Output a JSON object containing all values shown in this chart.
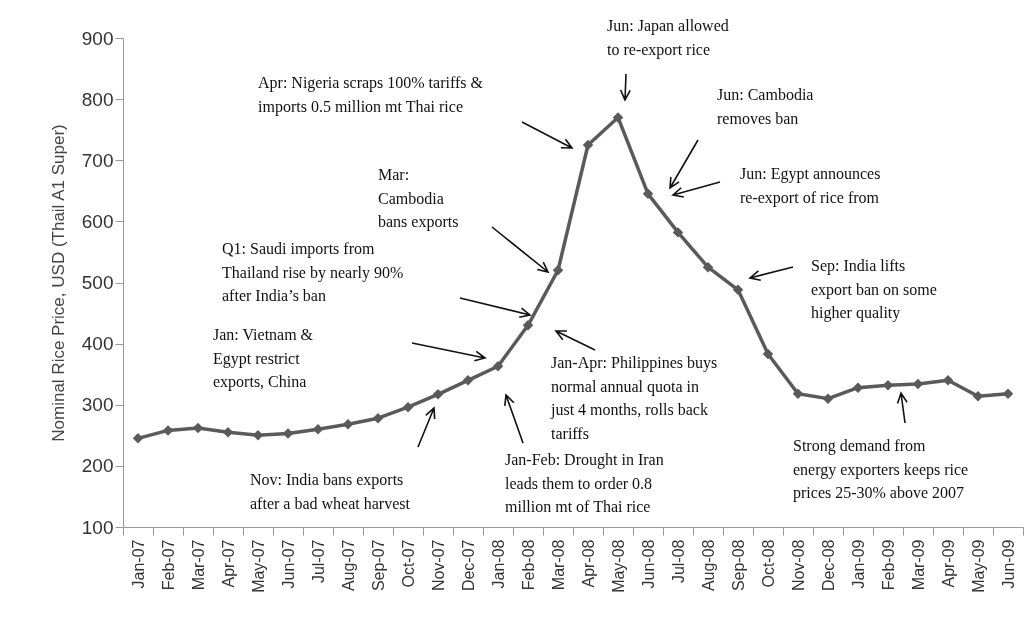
{
  "chart_data": {
    "type": "line",
    "ylabel": "Nominal Rice Price, USD (Thail A1 Super)",
    "categories": [
      "Jan-07",
      "Feb-07",
      "Mar-07",
      "Apr-07",
      "May-07",
      "Jun-07",
      "Jul-07",
      "Aug-07",
      "Sep-07",
      "Oct-07",
      "Nov-07",
      "Dec-07",
      "Jan-08",
      "Feb-08",
      "Mar-08",
      "Apr-08",
      "May-08",
      "Jun-08",
      "Jul-08",
      "Aug-08",
      "Sep-08",
      "Oct-08",
      "Nov-08",
      "Dec-08",
      "Jan-09",
      "Feb-09",
      "Mar-09",
      "Apr-09",
      "May-09",
      "Jun-09"
    ],
    "series": [
      {
        "color": "#5a5a5a",
        "values": [
          245,
          258,
          262,
          255,
          250,
          253,
          260,
          268,
          278,
          296,
          317,
          340,
          363,
          430,
          520,
          725,
          770,
          645,
          582,
          525,
          488,
          383,
          318,
          310,
          328,
          332,
          334,
          340,
          314,
          318
        ]
      }
    ],
    "ylim": [
      100,
      900
    ],
    "yticks": [
      100,
      200,
      300,
      400,
      500,
      600,
      700,
      800,
      900
    ],
    "grid": false,
    "marker": "diamond",
    "line_style": "solid",
    "annotations": [
      "Apr: Nigeria scraps 100% tariffs &\nimports 0.5 million mt Thai rice",
      "Jun: Japan allowed\nto re-export rice",
      "Jun: Cambodia\nremoves ban",
      "Jun: Egypt announces\nre-export of rice from",
      "Mar:\nCambodia\nbans exports",
      "Q1: Saudi imports from\nThailand rise by nearly 90%\nafter India’s ban",
      "Jan: Vietnam &\nEgypt restrict\nexports, China",
      "Nov: India bans exports\nafter a bad wheat harvest",
      "Jan-Apr: Philippines buys\nnormal annual quota in\njust 4 months, rolls back\ntariffs",
      "Jan-Feb: Drought in Iran\nleads them to order 0.8\nmillion mt of Thai rice",
      "Sep: India lifts\nexport ban on some\nhigher quality",
      "Strong demand from\nenergy exporters keeps rice\nprices 25-30% above 2007"
    ]
  }
}
